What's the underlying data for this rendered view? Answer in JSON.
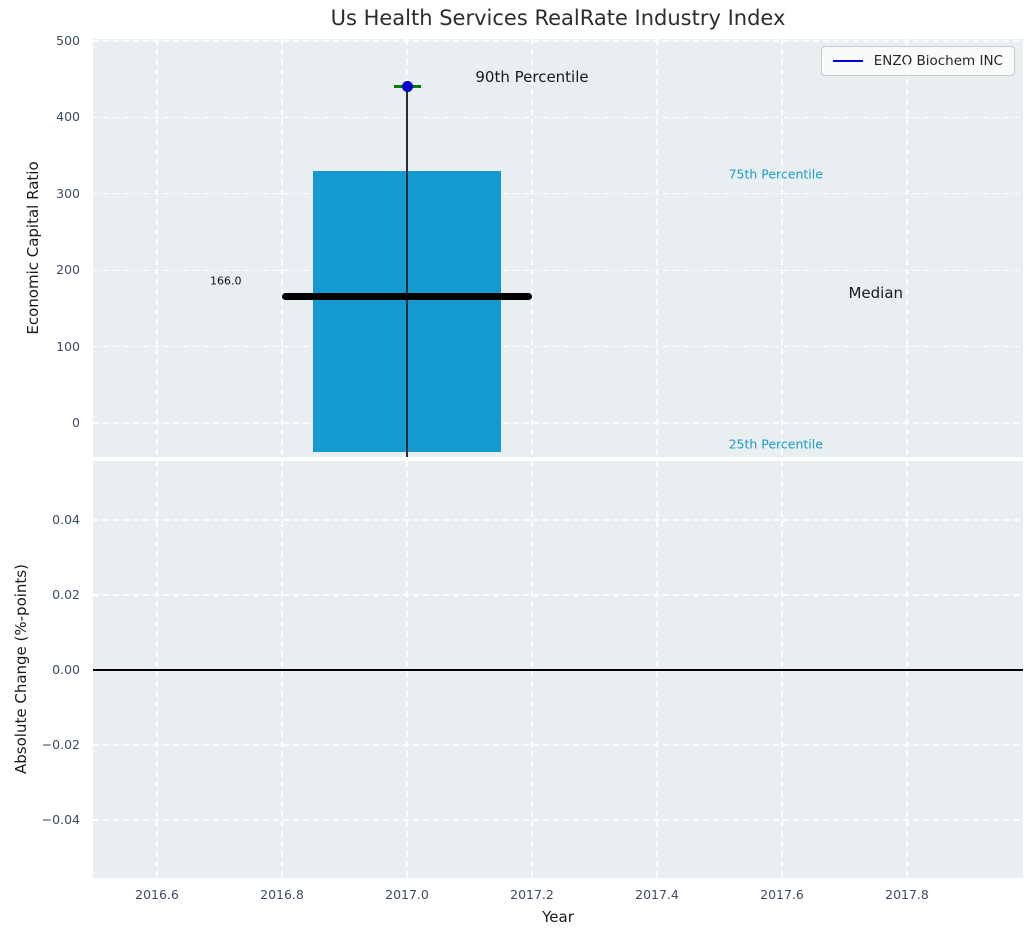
{
  "figure": {
    "title": "Us Health Services RealRate Industry Index"
  },
  "chart_data": [
    {
      "id": "industry-index-top-panel",
      "type": "bar",
      "title": "Us Health Services RealRate Industry Index",
      "xlabel": "",
      "ylabel": "Economic Capital Ratio",
      "xlim": [
        2016.5,
        2017.99
      ],
      "ylim": [
        -46,
        503
      ],
      "grid": true,
      "legend_position": "upper right",
      "yticks": {
        "values": [
          0,
          100,
          200,
          300,
          400,
          500
        ],
        "labels": [
          "0",
          "100",
          "200",
          "300",
          "400",
          "500"
        ]
      },
      "xticks": {
        "values": [
          2016.6,
          2016.8,
          2017.0,
          2017.2,
          2017.4,
          2017.6,
          2017.8
        ],
        "labels": []
      },
      "bar": {
        "x_center": 2017.0,
        "x_width": 0.3,
        "y_from": -38,
        "y_to": 330,
        "color": "#139ad0"
      },
      "percentiles": {
        "p25": -38,
        "median": 166.0,
        "p75": 330,
        "p90": 440
      },
      "median_line": {
        "x_from": 2016.8,
        "x_to": 2017.2,
        "y": 166.0,
        "color": "#000000",
        "value_label": "166.0"
      },
      "point": {
        "label": "ENZO Biochem INC",
        "x": 2017.0,
        "y": 440,
        "dot_color": "#0000cc",
        "cap_color": "#007d00",
        "stem_color": "#2d2d2d"
      },
      "annotations": [
        {
          "text": "90th Percentile",
          "x": 2017.2,
          "y": 453,
          "color": "#1a1a1a",
          "size": 15
        },
        {
          "text": "75th Percentile",
          "x": 2017.59,
          "y": 326,
          "color": "#1b9cc9",
          "size": 12.5
        },
        {
          "text": "Median",
          "x": 2017.75,
          "y": 170,
          "color": "#1a1a1a",
          "size": 15
        },
        {
          "text": "25th Percentile",
          "x": 2017.59,
          "y": -27,
          "color": "#1b9cc9",
          "size": 12.5
        },
        {
          "text": "166.0",
          "x": 2016.71,
          "y": 186,
          "color": "#111111",
          "size": 11
        }
      ],
      "legend": {
        "label": "ENZO Biochem INC",
        "line_color": "#0000dd"
      }
    },
    {
      "id": "absolute-change-bottom-panel",
      "type": "line",
      "title": "",
      "xlabel": "Year",
      "ylabel": "Absolute Change (%-points)",
      "xlim": [
        2016.5,
        2017.99
      ],
      "ylim": [
        -0.0555,
        0.0555
      ],
      "grid": true,
      "yticks": {
        "values": [
          0.04,
          0.02,
          0.0,
          -0.02,
          -0.04
        ],
        "labels": [
          "0.04",
          "0.02",
          "0.00",
          "−0.02",
          "−0.04"
        ]
      },
      "xticks": {
        "values": [
          2016.6,
          2016.8,
          2017.0,
          2017.2,
          2017.4,
          2017.6,
          2017.8
        ],
        "labels": [
          "2016.6",
          "2016.8",
          "2017.0",
          "2017.2",
          "2017.4",
          "2017.6",
          "2017.8"
        ]
      },
      "zero_line": {
        "y": 0.0,
        "color": "#000000"
      },
      "series": []
    }
  ]
}
